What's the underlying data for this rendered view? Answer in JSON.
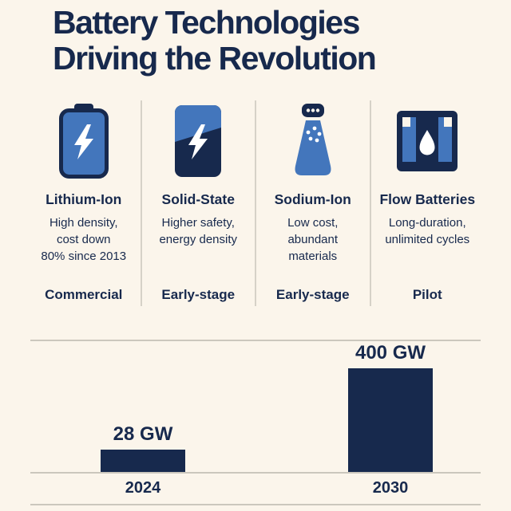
{
  "title": "Battery Technologies\nDriving the Revolution",
  "technologies": [
    {
      "name": "Lithium-Ion",
      "description": "High density,\ncost down\n80% since 2013",
      "stage": "Commercial",
      "icon": "lithium-ion-battery-bolt-icon"
    },
    {
      "name": "Solid-State",
      "description": "Higher safety,\nenergy density",
      "stage": "Early-stage",
      "icon": "solid-state-cell-bolt-icon"
    },
    {
      "name": "Sodium-Ion",
      "description": "Low cost,\nabundant\nmaterials",
      "stage": "Early-stage",
      "icon": "sodium-salt-shaker-icon"
    },
    {
      "name": "Flow Batteries",
      "description": "Long-duration,\nunlimited cycles",
      "stage": "Pilot",
      "icon": "flow-battery-droplet-icon"
    }
  ],
  "chart_data": {
    "type": "bar",
    "categories": [
      "2024",
      "2030"
    ],
    "values": [
      28,
      400
    ],
    "value_labels": [
      "28 GW",
      "400 GW"
    ],
    "unit": "GW",
    "title": "",
    "xlabel": "",
    "ylabel": "",
    "ylim": [
      0,
      400
    ],
    "grid": false,
    "legend": false,
    "bar_color": "#17294d"
  },
  "colors": {
    "background": "#fbf5eb",
    "navy": "#17294d",
    "blue": "#4376bc",
    "divider": "#cbc7bd",
    "white": "#ffffff"
  }
}
